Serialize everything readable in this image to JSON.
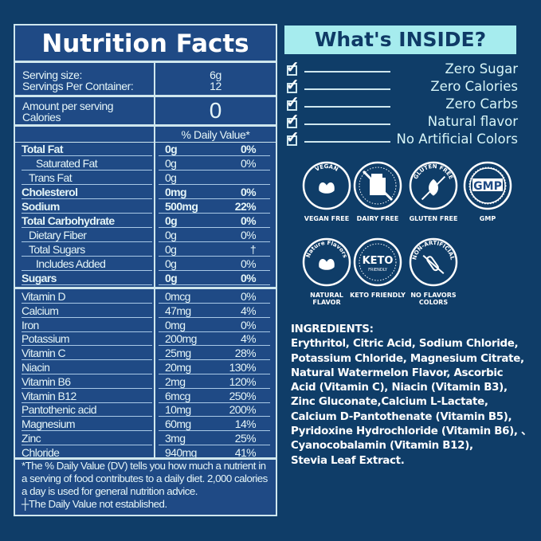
{
  "nutrition": {
    "title": "Nutrition Facts",
    "serving_size_label": "Serving size:",
    "serving_size": "6g",
    "servings_label": "Servings Per Container:",
    "servings": "12",
    "amount_label": "Amount per serving",
    "calories_label": "Calories",
    "calories": "0",
    "dv_header": "% Daily Value*",
    "macros": [
      {
        "name": "Total Fat",
        "amount": "0g",
        "dv": "0%",
        "bold": true,
        "indent": 0
      },
      {
        "name": "Saturated Fat",
        "amount": "0g",
        "dv": "0%",
        "bold": false,
        "indent": 2
      },
      {
        "name": "Trans Fat",
        "amount": "0g",
        "dv": "",
        "bold": false,
        "indent": 1
      },
      {
        "name": "Cholesterol",
        "amount": "0mg",
        "dv": "0%",
        "bold": true,
        "indent": 0
      },
      {
        "name": "Sodium",
        "amount": "500mg",
        "dv": "22%",
        "bold": true,
        "indent": 0
      },
      {
        "name": "Total Carbohydrate",
        "amount": "0g",
        "dv": "0%",
        "bold": true,
        "indent": 0
      },
      {
        "name": "Dietary Fiber",
        "amount": "0g",
        "dv": "0%",
        "bold": false,
        "indent": 1
      },
      {
        "name": "Total Sugars",
        "amount": "0g",
        "dv": "†",
        "bold": false,
        "indent": 1
      },
      {
        "name": "Includes Added",
        "amount": "0g",
        "dv": "0%",
        "bold": false,
        "indent": 2
      },
      {
        "name": "Sugars",
        "amount": "0g",
        "dv": "0%",
        "bold": true,
        "indent": 0
      }
    ],
    "micros": [
      {
        "name": "Vitamin D",
        "amount": "0mcg",
        "dv": "0%"
      },
      {
        "name": "Calcium",
        "amount": "47mg",
        "dv": "4%"
      },
      {
        "name": "Iron",
        "amount": "0mg",
        "dv": "0%"
      },
      {
        "name": "Potassium",
        "amount": "200mg",
        "dv": "4%"
      },
      {
        "name": "Vitamin C",
        "amount": "25mg",
        "dv": "28%"
      },
      {
        "name": "Niacin",
        "amount": "20mg",
        "dv": "130%"
      },
      {
        "name": "Vitamin B6",
        "amount": "2mg",
        "dv": "120%"
      },
      {
        "name": "Vitamin B12",
        "amount": "6mcg",
        "dv": "250%"
      },
      {
        "name": "Pantothenic acid",
        "amount": "10mg",
        "dv": "200%"
      },
      {
        "name": "Magnesium",
        "amount": "60mg",
        "dv": "14%"
      },
      {
        "name": "Zinc",
        "amount": "3mg",
        "dv": "25%"
      },
      {
        "name": "Chloride",
        "amount": "940mg",
        "dv": "41%"
      }
    ],
    "footnote": "*The % Daily Value (DV) tells you how much a nutrient in a serving of food contributes to a daily diet. 2,000 calories a day is used for general nutrition advice.",
    "footnote2": "┼The Daily Value not established."
  },
  "inside": {
    "title": "What's INSIDE?",
    "items": [
      "Zero Sugar",
      "Zero Calories",
      "Zero Carbs",
      "Natural flavor",
      "No Artificial Colors"
    ]
  },
  "badges": [
    {
      "label": "VEGAN FREE",
      "ring_text": "VEGAN",
      "icon": "leaf-icon"
    },
    {
      "label": "DAIRY FREE",
      "ring_text": "",
      "icon": "milk-carton-crossed-icon"
    },
    {
      "label": "GLUTEN FREE",
      "ring_text": "GLUTEN FREE",
      "icon": "leaf-crossed-icon"
    },
    {
      "label": "GMP",
      "ring_text": "GMP",
      "icon": "gmp-seal-icon"
    },
    {
      "label": "NATURAL FLAVOR",
      "ring_text": "Nature Flavors",
      "icon": "leaf-icon"
    },
    {
      "label": "KETO FRIENDLY",
      "ring_text": "KETO",
      "icon": "keto-icon"
    },
    {
      "label": "NO FLAVORS COLORS",
      "ring_text": "NON-ARTIFICIAL",
      "icon": "test-tube-crossed-icon"
    }
  ],
  "ingredients": {
    "title": "INGREDIENTS:",
    "lines": [
      "Erythritol, Citric Acid, Sodium Chloride,",
      "Potassium Chloride, Magnesium Citrate,",
      "Natural Watermelon Flavor, Ascorbic",
      "Acid (Vitamin C), Niacin (Vitamin B3),",
      "Zinc Gluconate,Calcium L-Lactate,",
      "Calcium D-Pantothenate (Vitamin B5),",
      "Pyridoxine Hydrochloride (Vitamin B6), 、",
      "Cyanocobalamin (Vitamin B12),",
      "Stevia Leaf Extract."
    ]
  },
  "colors": {
    "background": "#0f3d68",
    "panel": "#1f4a85",
    "accent": "#a6ecee",
    "header_text": "#0f3a66"
  }
}
